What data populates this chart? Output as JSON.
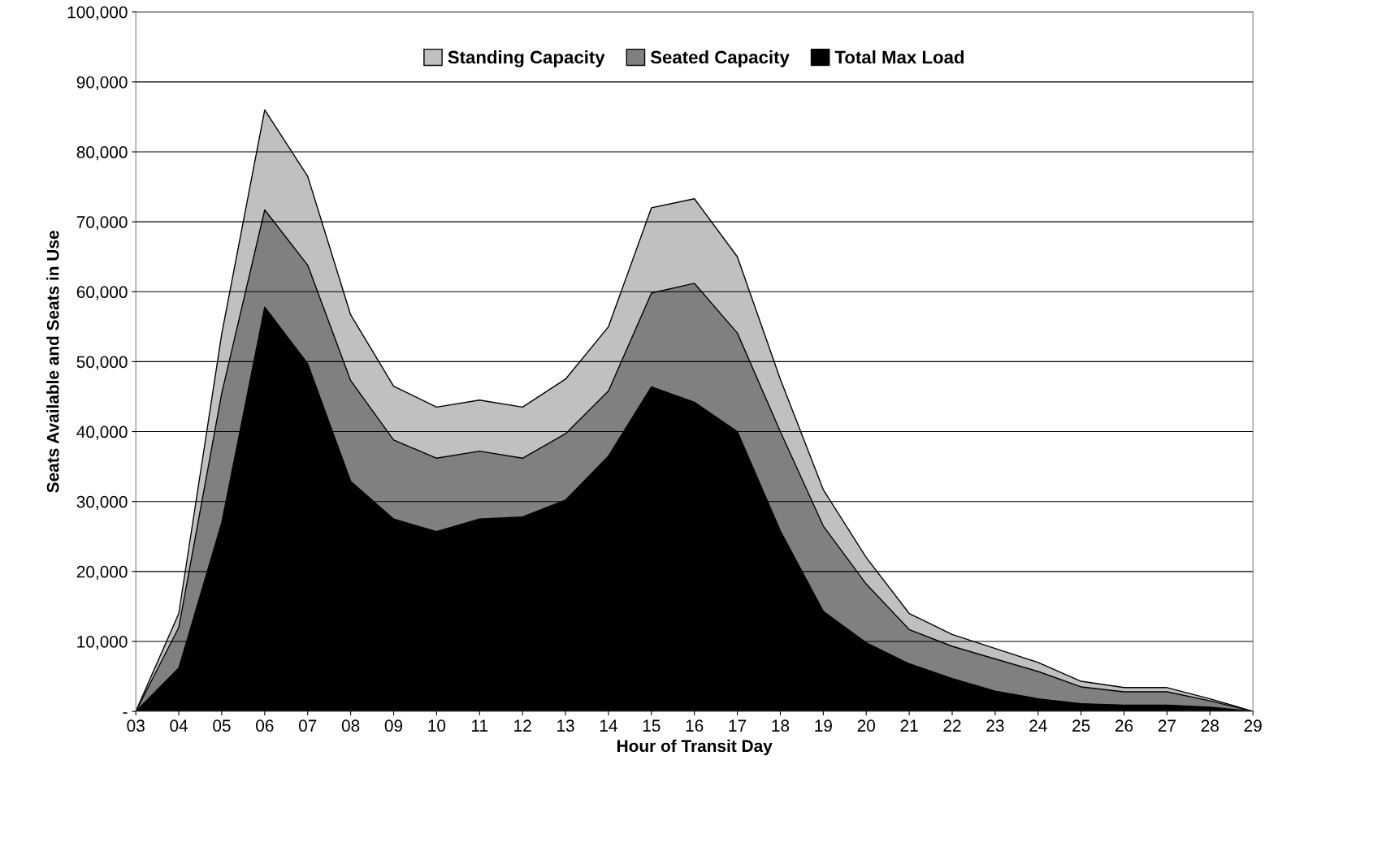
{
  "chart_data": {
    "type": "area",
    "xlabel": "Hour of Transit Day",
    "ylabel": "Seats Available and Seats in Use",
    "categories": [
      "03",
      "04",
      "05",
      "06",
      "07",
      "08",
      "09",
      "10",
      "11",
      "12",
      "13",
      "14",
      "15",
      "16",
      "17",
      "18",
      "19",
      "20",
      "21",
      "22",
      "23",
      "24",
      "25",
      "26",
      "27",
      "28",
      "29"
    ],
    "series": [
      {
        "name": "Standing Capacity",
        "color": "#c0c0c0",
        "values": [
          0,
          14000,
          54000,
          86000,
          76500,
          56700,
          46500,
          43500,
          44500,
          43500,
          47500,
          55000,
          72000,
          73300,
          65000,
          47500,
          31700,
          22000,
          14000,
          11000,
          9000,
          7000,
          4300,
          3400,
          3400,
          1800,
          0
        ]
      },
      {
        "name": "Seated Capacity",
        "color": "#808080",
        "values": [
          0,
          12000,
          45500,
          71700,
          63800,
          47300,
          38800,
          36200,
          37200,
          36200,
          39700,
          45800,
          59800,
          61200,
          54100,
          40000,
          26500,
          18200,
          11700,
          9300,
          7500,
          5700,
          3500,
          2800,
          2800,
          1500,
          0
        ]
      },
      {
        "name": "Total Max Load",
        "color": "#000000",
        "values": [
          0,
          6200,
          27000,
          57800,
          49700,
          32900,
          27500,
          25700,
          27500,
          27800,
          30200,
          36500,
          46400,
          44200,
          40000,
          25800,
          14300,
          9800,
          6800,
          4700,
          2900,
          1800,
          1100,
          900,
          900,
          600,
          0
        ]
      }
    ],
    "ylim": [
      0,
      100000
    ],
    "yticks": [
      {
        "value": 0,
        "label": "-"
      },
      {
        "value": 10000,
        "label": "10,000"
      },
      {
        "value": 20000,
        "label": "20,000"
      },
      {
        "value": 30000,
        "label": "30,000"
      },
      {
        "value": 40000,
        "label": "40,000"
      },
      {
        "value": 50000,
        "label": "50,000"
      },
      {
        "value": 60000,
        "label": "60,000"
      },
      {
        "value": 70000,
        "label": "70,000"
      },
      {
        "value": 80000,
        "label": "80,000"
      },
      {
        "value": 90000,
        "label": "90,000"
      },
      {
        "value": 100000,
        "label": "100,000"
      }
    ],
    "grid": "y",
    "legend": "top"
  }
}
